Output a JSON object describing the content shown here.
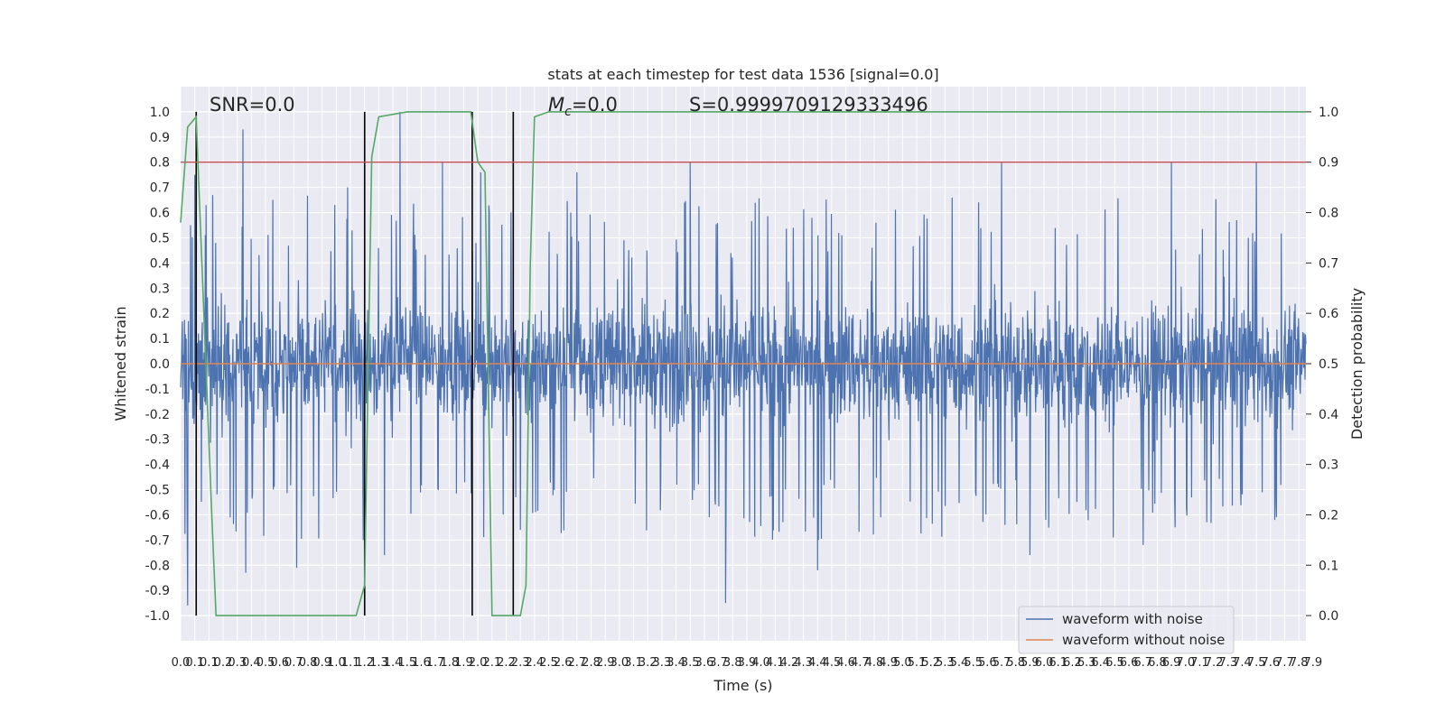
{
  "chart_data": {
    "type": "line",
    "title": "stats at each timestep for test data 1536 [signal=0.0]",
    "xlabel": "Time (s)",
    "ylabel_left": "Whitened strain",
    "ylabel_right": "Detection probability",
    "xlim": [
      0.0,
      7.95
    ],
    "ylim_left": [
      -1.1,
      1.1
    ],
    "ylim_right": [
      -0.05,
      1.05
    ],
    "x_ticks": [
      "0.0",
      "0.1",
      "0.1",
      "0.2",
      "0.3",
      "0.4",
      "0.5",
      "0.6",
      "0.7",
      "0.8",
      "0.9",
      "1.0",
      "1.1",
      "1.2",
      "1.3",
      "1.4",
      "1.5",
      "1.6",
      "1.7",
      "1.8",
      "1.9",
      "2.0",
      "2.1",
      "2.2",
      "2.3",
      "2.4",
      "2.5",
      "2.6",
      "2.7",
      "2.8",
      "2.9",
      "3.0",
      "3.1",
      "3.2",
      "3.3",
      "3.4",
      "3.5",
      "3.6",
      "3.7",
      "3.8",
      "3.9",
      "4.0",
      "4.1",
      "4.2",
      "4.3",
      "4.4",
      "4.5",
      "4.6",
      "4.7",
      "4.8",
      "4.9",
      "5.0",
      "5.1",
      "5.2",
      "5.3",
      "5.4",
      "5.5",
      "5.6",
      "5.7",
      "5.8",
      "5.9",
      "6.0",
      "6.1",
      "6.2",
      "6.3",
      "6.4",
      "6.5",
      "6.6",
      "6.7",
      "6.8",
      "6.9",
      "7.0",
      "7.1",
      "7.2",
      "7.3",
      "7.4",
      "7.5",
      "7.6",
      "7.7",
      "7.8",
      "7.9"
    ],
    "y_ticks_left": [
      "1.0",
      "0.9",
      "0.8",
      "0.7",
      "0.6",
      "0.5",
      "0.4",
      "0.3",
      "0.2",
      "0.1",
      "0.0",
      "-0.1",
      "-0.2",
      "-0.3",
      "-0.4",
      "-0.5",
      "-0.6",
      "-0.7",
      "-0.8",
      "-0.9",
      "-1.0"
    ],
    "y_ticks_right": [
      "1.0",
      "0.9",
      "0.8",
      "0.7",
      "0.6",
      "0.5",
      "0.4",
      "0.3",
      "0.2",
      "0.1",
      "0.0"
    ],
    "grid": true,
    "legend_position": "lower-right",
    "colors": {
      "background": "#eaeaf2",
      "grid": "#ffffff",
      "noise": "#4c72b0",
      "clean": "#dd8452",
      "probability": "#55a868",
      "threshold": "#c44e52",
      "marker": "#000000"
    },
    "series": [
      {
        "name": "waveform with noise",
        "axis": "left",
        "note": "dense noise trace, amplitude envelope about ±0.4 with spikes",
        "envelope_upper": 0.42,
        "envelope_lower": -0.45,
        "spikes": [
          {
            "x": 0.07,
            "y": 0.55
          },
          {
            "x": 0.1,
            "y": 0.75
          },
          {
            "x": 0.18,
            "y": 0.63
          },
          {
            "x": 0.44,
            "y": 0.93
          },
          {
            "x": 0.35,
            "y": -0.61
          },
          {
            "x": 0.46,
            "y": -0.83
          },
          {
            "x": 0.82,
            "y": -0.81
          },
          {
            "x": 1.18,
            "y": 0.7
          },
          {
            "x": 1.29,
            "y": -0.7
          },
          {
            "x": 1.44,
            "y": -0.76
          },
          {
            "x": 1.55,
            "y": 1.0
          },
          {
            "x": 1.85,
            "y": 0.8
          },
          {
            "x": 2.12,
            "y": 0.76
          },
          {
            "x": 2.4,
            "y": -0.66
          },
          {
            "x": 2.8,
            "y": 0.76
          },
          {
            "x": 3.6,
            "y": 0.8
          },
          {
            "x": 3.85,
            "y": -0.95
          },
          {
            "x": 4.5,
            "y": -0.82
          },
          {
            "x": 5.8,
            "y": 0.8
          },
          {
            "x": 6.0,
            "y": -0.76
          },
          {
            "x": 7.0,
            "y": 0.8
          },
          {
            "x": 7.6,
            "y": 0.8
          },
          {
            "x": 6.8,
            "y": -0.72
          },
          {
            "x": 0.05,
            "y": -0.96
          }
        ]
      },
      {
        "name": "waveform without noise",
        "axis": "left",
        "x": [
          0.0,
          7.95
        ],
        "y": [
          0.0,
          0.0
        ]
      },
      {
        "name": "detection probability",
        "axis": "right",
        "x": [
          0.0,
          0.05,
          0.11,
          0.22,
          0.25,
          0.3,
          0.5,
          0.8,
          1.0,
          1.2,
          1.24,
          1.3,
          1.35,
          1.4,
          1.6,
          1.8,
          2.0,
          2.05,
          2.1,
          2.15,
          2.2,
          2.25,
          2.35,
          2.4,
          2.44,
          2.47,
          2.5,
          2.6,
          3.0,
          4.0,
          5.0,
          6.0,
          7.0,
          7.95
        ],
        "y": [
          0.78,
          0.97,
          0.99,
          0.2,
          0.0,
          0.0,
          0.0,
          0.0,
          0.0,
          0.0,
          0.0,
          0.06,
          0.91,
          0.99,
          1.0,
          1.0,
          1.0,
          1.0,
          0.9,
          0.88,
          0.0,
          0.0,
          0.0,
          0.0,
          0.06,
          0.69,
          0.99,
          1.0,
          1.0,
          1.0,
          1.0,
          1.0,
          1.0,
          1.0
        ]
      }
    ],
    "threshold_line": {
      "axis": "right",
      "y": 0.9
    },
    "vertical_markers_x": [
      0.11,
      1.3,
      2.06,
      2.35
    ],
    "annotations": {
      "snr": "SNR=0.0",
      "mc_symbol": "M",
      "mc_sub": "c",
      "mc_value": "=0.0",
      "s": "S=0.9999709129333496"
    }
  }
}
